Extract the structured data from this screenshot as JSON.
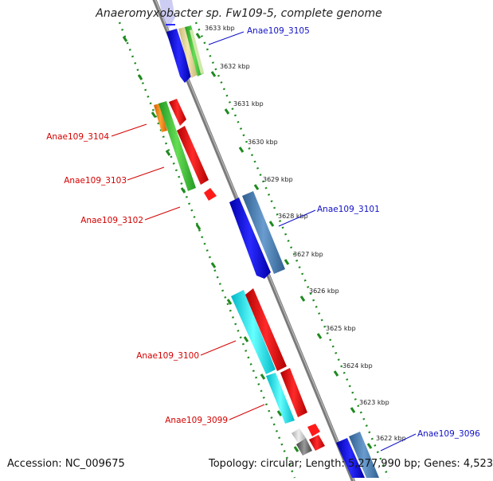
{
  "title": "Anaeromyxobacter sp. Fw109-5, complete genome",
  "footer": {
    "accession": "Accession: NC_009675",
    "summary": "Topology: circular; Length: 5,277,990 bp; Genes: 4,523"
  },
  "colors": {
    "axis": "#8c8c8c",
    "ticks": "#1f8a1f",
    "red_label": "#d40000",
    "blue_label": "#1010c8"
  },
  "ticks": [
    "3633 kbp",
    "3632 kbp",
    "3631 kbp",
    "3630 kbp",
    "3629 kbp",
    "3628 kbp",
    "3627 kbp",
    "3626 kbp",
    "3625 kbp",
    "3624 kbp",
    "3623 kbp",
    "3622 kbp"
  ],
  "gene_labels": [
    {
      "text": "Anae109_3105",
      "color": "blue"
    },
    {
      "text": "Anae109_3104",
      "color": "red"
    },
    {
      "text": "Anae109_3103",
      "color": "red"
    },
    {
      "text": "Anae109_3102",
      "color": "red"
    },
    {
      "text": "Anae109_3101",
      "color": "blue"
    },
    {
      "text": "Anae109_3100",
      "color": "red"
    },
    {
      "text": "Anae109_3099",
      "color": "red"
    },
    {
      "text": "Anae109_3096",
      "color": "blue"
    }
  ]
}
